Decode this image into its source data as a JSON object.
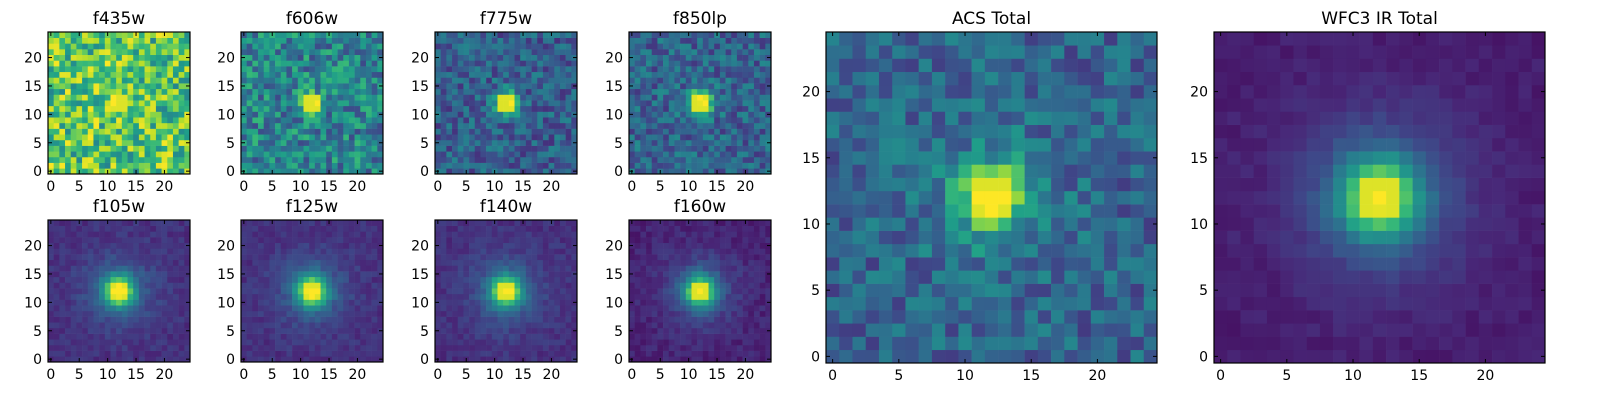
{
  "chart_data": [
    {
      "type": "heatmap",
      "title": "f435w",
      "colormap": "viridis",
      "x_ticks": [
        0,
        5,
        10,
        15,
        20
      ],
      "y_ticks": [
        0,
        5,
        10,
        15,
        20
      ],
      "grid_size": 25,
      "source_peak": [
        12,
        12
      ],
      "source_sigma": 1.6,
      "source_amplitude": 0.15,
      "background_level": 0.72,
      "noise_level": 0.55,
      "halo_sigma": 0,
      "halo_amplitude": 0
    },
    {
      "type": "heatmap",
      "title": "f606w",
      "colormap": "viridis",
      "x_ticks": [
        0,
        5,
        10,
        15,
        20
      ],
      "y_ticks": [
        0,
        5,
        10,
        15,
        20
      ],
      "grid_size": 25,
      "source_peak": [
        12,
        12
      ],
      "source_sigma": 1.2,
      "source_amplitude": 0.55,
      "background_level": 0.45,
      "noise_level": 0.45,
      "halo_sigma": 0,
      "halo_amplitude": 0
    },
    {
      "type": "heatmap",
      "title": "f775w",
      "colormap": "viridis",
      "x_ticks": [
        0,
        5,
        10,
        15,
        20
      ],
      "y_ticks": [
        0,
        5,
        10,
        15,
        20
      ],
      "grid_size": 25,
      "source_peak": [
        12,
        12
      ],
      "source_sigma": 1.5,
      "source_amplitude": 0.7,
      "background_level": 0.3,
      "noise_level": 0.32,
      "halo_sigma": 0,
      "halo_amplitude": 0
    },
    {
      "type": "heatmap",
      "title": "f850lp",
      "colormap": "viridis",
      "x_ticks": [
        0,
        5,
        10,
        15,
        20
      ],
      "y_ticks": [
        0,
        5,
        10,
        15,
        20
      ],
      "grid_size": 25,
      "source_peak": [
        12,
        12
      ],
      "source_sigma": 1.6,
      "source_amplitude": 0.7,
      "background_level": 0.32,
      "noise_level": 0.32,
      "halo_sigma": 0,
      "halo_amplitude": 0
    },
    {
      "type": "heatmap",
      "title": "f105w",
      "colormap": "viridis",
      "x_ticks": [
        0,
        5,
        10,
        15,
        20
      ],
      "y_ticks": [
        0,
        5,
        10,
        15,
        20
      ],
      "grid_size": 25,
      "source_peak": [
        12,
        12
      ],
      "source_sigma": 1.8,
      "source_amplitude": 0.75,
      "background_level": 0.14,
      "noise_level": 0.1,
      "halo_sigma": 4.5,
      "halo_amplitude": 0.2
    },
    {
      "type": "heatmap",
      "title": "f125w",
      "colormap": "viridis",
      "x_ticks": [
        0,
        5,
        10,
        15,
        20
      ],
      "y_ticks": [
        0,
        5,
        10,
        15,
        20
      ],
      "grid_size": 25,
      "source_peak": [
        12,
        12
      ],
      "source_sigma": 1.8,
      "source_amplitude": 0.75,
      "background_level": 0.14,
      "noise_level": 0.1,
      "halo_sigma": 4.5,
      "halo_amplitude": 0.2
    },
    {
      "type": "heatmap",
      "title": "f140w",
      "colormap": "viridis",
      "x_ticks": [
        0,
        5,
        10,
        15,
        20
      ],
      "y_ticks": [
        0,
        5,
        10,
        15,
        20
      ],
      "grid_size": 25,
      "source_peak": [
        12,
        12
      ],
      "source_sigma": 1.8,
      "source_amplitude": 0.75,
      "background_level": 0.14,
      "noise_level": 0.1,
      "halo_sigma": 4.5,
      "halo_amplitude": 0.2
    },
    {
      "type": "heatmap",
      "title": "f160w",
      "colormap": "viridis",
      "x_ticks": [
        0,
        5,
        10,
        15,
        20
      ],
      "y_ticks": [
        0,
        5,
        10,
        15,
        20
      ],
      "grid_size": 25,
      "source_peak": [
        12,
        12
      ],
      "source_sigma": 1.8,
      "source_amplitude": 0.75,
      "background_level": 0.1,
      "noise_level": 0.1,
      "halo_sigma": 4.5,
      "halo_amplitude": 0.2
    },
    {
      "type": "heatmap",
      "title": "ACS Total",
      "colormap": "viridis",
      "x_ticks": [
        0,
        5,
        10,
        15,
        20
      ],
      "y_ticks": [
        0,
        5,
        10,
        15,
        20
      ],
      "grid_size": 25,
      "source_peak": [
        12,
        12
      ],
      "source_sigma": 1.7,
      "source_amplitude": 0.65,
      "background_level": 0.32,
      "noise_level": 0.3,
      "halo_sigma": 4,
      "halo_amplitude": 0.12
    },
    {
      "type": "heatmap",
      "title": "WFC3 IR Total",
      "colormap": "viridis",
      "x_ticks": [
        0,
        5,
        10,
        15,
        20
      ],
      "y_ticks": [
        0,
        5,
        10,
        15,
        20
      ],
      "grid_size": 25,
      "source_peak": [
        12,
        12
      ],
      "source_sigma": 2.0,
      "source_amplitude": 0.7,
      "background_level": 0.08,
      "noise_level": 0.06,
      "halo_sigma": 4.5,
      "halo_amplitude": 0.25
    }
  ],
  "colors": {
    "viridis": [
      "#440154",
      "#482878",
      "#3e4989",
      "#31688e",
      "#26828e",
      "#1f9e89",
      "#35b779",
      "#6ece58",
      "#b5de2b",
      "#fde725"
    ]
  }
}
